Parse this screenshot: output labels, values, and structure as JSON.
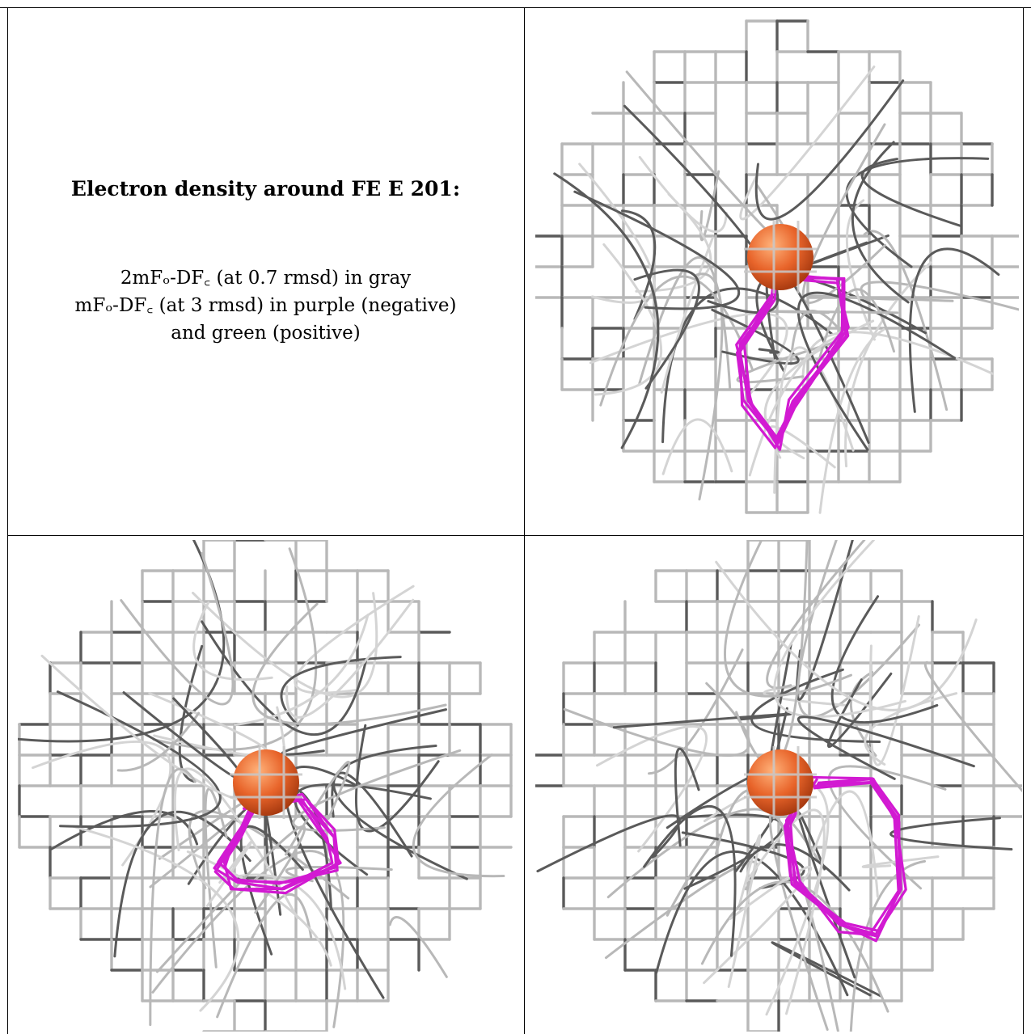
{
  "caption": {
    "title": "Electron density around FE E 201:",
    "line1": "2mFₒ-DF꜀ (at 0.7 rmsd) in gray",
    "line2": "mFₒ-DF꜀ (at 3 rmsd) in purple (negative)",
    "line3": "and green (positive)"
  },
  "colors": {
    "mesh_gray": "#b8b8b8",
    "mesh_dark": "#5a5a5a",
    "negative_purple": "#d21ad2",
    "atom_orange": "#e8642a"
  },
  "panels": [
    {
      "name": "view-top-right",
      "atom": "FE"
    },
    {
      "name": "view-bottom-left",
      "atom": "FE"
    },
    {
      "name": "view-bottom-right",
      "atom": "FE"
    }
  ]
}
